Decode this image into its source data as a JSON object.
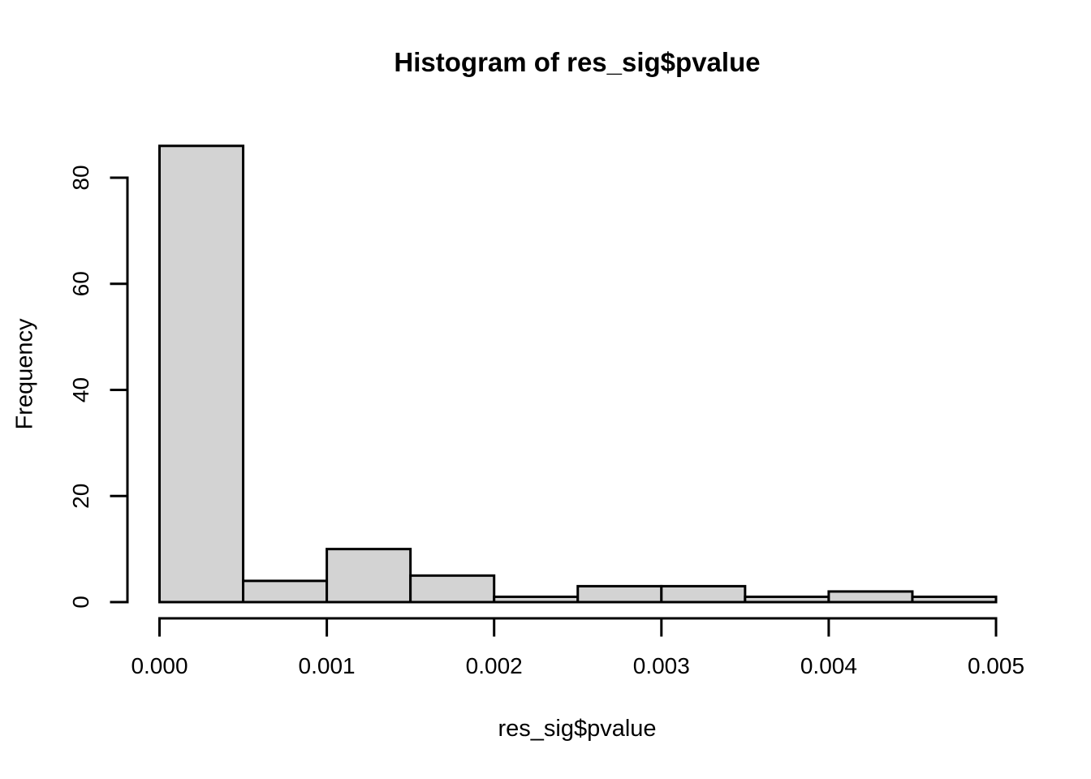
{
  "chart_data": {
    "type": "bar",
    "subtype": "histogram",
    "title": "Histogram of res_sig$pvalue",
    "xlabel": "res_sig$pvalue",
    "ylabel": "Frequency",
    "bin_edges": [
      0.0,
      0.0005,
      0.001,
      0.0015,
      0.002,
      0.0025,
      0.003,
      0.0035,
      0.004,
      0.0045,
      0.005
    ],
    "values": [
      86,
      4,
      10,
      5,
      1,
      3,
      3,
      1,
      2,
      1
    ],
    "x_ticks": {
      "values": [
        0.0,
        0.001,
        0.002,
        0.003,
        0.004,
        0.005
      ],
      "labels": [
        "0.000",
        "0.001",
        "0.002",
        "0.003",
        "0.004",
        "0.005"
      ]
    },
    "y_ticks": {
      "values": [
        0,
        20,
        40,
        60,
        80
      ],
      "labels": [
        "0",
        "20",
        "40",
        "60",
        "80"
      ]
    },
    "xlim": [
      0.0,
      0.005
    ],
    "ylim": [
      0,
      86
    ],
    "grid": false,
    "legend": null,
    "colors": {
      "bar_fill": "#d3d3d3",
      "bar_stroke": "#000000",
      "axis": "#000000",
      "text": "#000000",
      "background": "#ffffff"
    }
  }
}
